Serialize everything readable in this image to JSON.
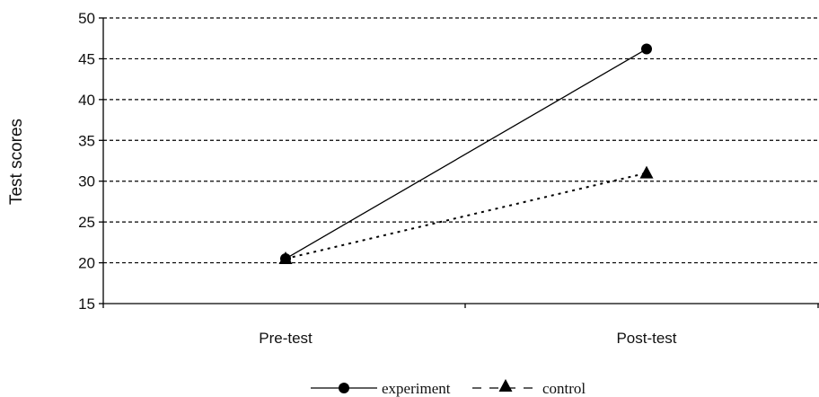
{
  "chart_data": {
    "type": "line",
    "categories": [
      "Pre-test",
      "Post-test"
    ],
    "series": [
      {
        "name": "experiment",
        "values": [
          20.5,
          46.2
        ],
        "marker": "circle",
        "line_style": "solid",
        "color": "#000000"
      },
      {
        "name": "control",
        "values": [
          20.5,
          31.0
        ],
        "marker": "triangle",
        "line_style": "dotted",
        "color": "#000000"
      }
    ],
    "xlabel": "",
    "ylabel": "Test scores",
    "ylim": [
      15,
      50
    ],
    "yticks": [
      15,
      20,
      25,
      30,
      35,
      40,
      45,
      50
    ],
    "grid": "horizontal-dashed",
    "legend_position": "bottom"
  }
}
